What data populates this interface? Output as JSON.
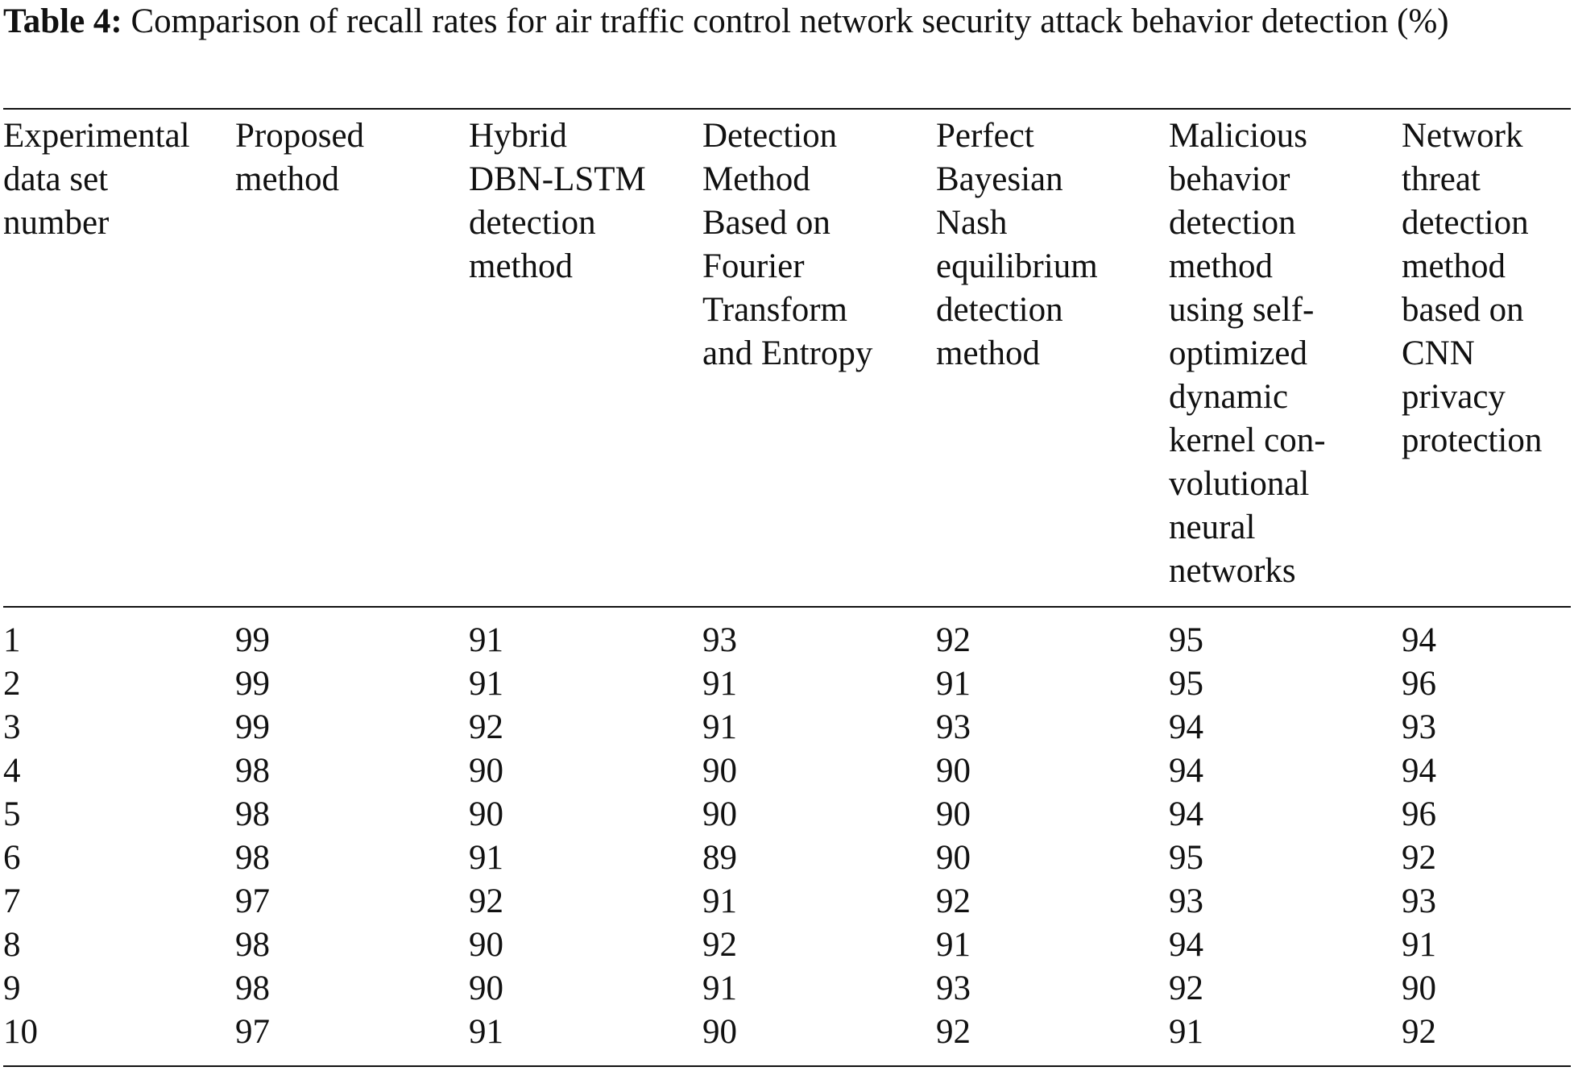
{
  "caption": {
    "label": "Table 4:",
    "text": "Comparison of recall rates for air traffic control network security attack behavior detection (%)"
  },
  "table": {
    "headers": [
      [
        "Experimental",
        "data set",
        "number"
      ],
      [
        "Proposed",
        "method"
      ],
      [
        "Hybrid",
        "DBN-LSTM",
        "detection",
        "method"
      ],
      [
        "Detection",
        "Method",
        "Based on",
        "Fourier",
        "Transform",
        "and Entropy"
      ],
      [
        "Perfect",
        "Bayesian",
        "Nash",
        "equilibrium",
        "detection",
        "method"
      ],
      [
        "Malicious",
        "behavior",
        "detection",
        "method",
        "using self-",
        "optimized",
        "dynamic",
        "kernel con-",
        "volutional",
        "neural",
        "networks"
      ],
      [
        "Network",
        "threat",
        "detection",
        "method",
        "based on",
        "CNN",
        "privacy",
        "protection"
      ]
    ],
    "rows": [
      [
        "1",
        "99",
        "91",
        "93",
        "92",
        "95",
        "94"
      ],
      [
        "2",
        "99",
        "91",
        "91",
        "91",
        "95",
        "96"
      ],
      [
        "3",
        "99",
        "92",
        "91",
        "93",
        "94",
        "93"
      ],
      [
        "4",
        "98",
        "90",
        "90",
        "90",
        "94",
        "94"
      ],
      [
        "5",
        "98",
        "90",
        "90",
        "90",
        "94",
        "96"
      ],
      [
        "6",
        "98",
        "91",
        "89",
        "90",
        "95",
        "92"
      ],
      [
        "7",
        "97",
        "92",
        "91",
        "92",
        "93",
        "93"
      ],
      [
        "8",
        "98",
        "90",
        "92",
        "91",
        "94",
        "91"
      ],
      [
        "9",
        "98",
        "90",
        "91",
        "93",
        "92",
        "90"
      ],
      [
        "10",
        "97",
        "91",
        "90",
        "92",
        "91",
        "92"
      ]
    ]
  }
}
